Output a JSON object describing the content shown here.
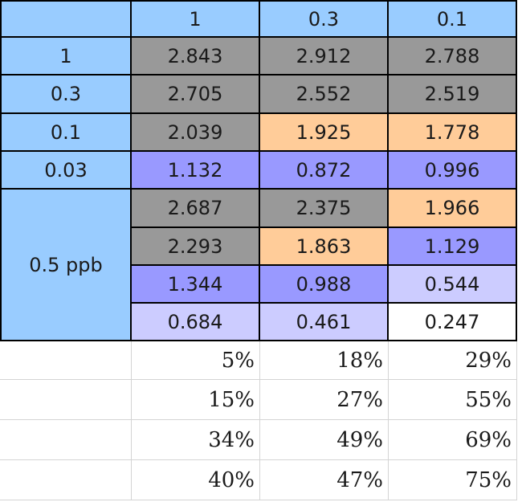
{
  "header": {
    "corner": "",
    "cols": [
      "1",
      "0.3",
      "0.1"
    ]
  },
  "rows": [
    {
      "label": "1",
      "values": [
        "2.843",
        "2.912",
        "2.788"
      ],
      "fills": [
        "gray",
        "gray",
        "gray"
      ]
    },
    {
      "label": "0.3",
      "values": [
        "2.705",
        "2.552",
        "2.519"
      ],
      "fills": [
        "gray",
        "gray",
        "gray"
      ]
    },
    {
      "label": "0.1",
      "values": [
        "2.039",
        "1.925",
        "1.778"
      ],
      "fills": [
        "gray",
        "orange",
        "orange"
      ]
    },
    {
      "label": "0.03",
      "values": [
        "1.132",
        "0.872",
        "0.996"
      ],
      "fills": [
        "purple",
        "purple",
        "purple"
      ]
    }
  ],
  "group": {
    "label": "0.5 ppb",
    "rows": [
      {
        "values": [
          "2.687",
          "2.375",
          "1.966"
        ],
        "fills": [
          "gray",
          "gray",
          "orange"
        ]
      },
      {
        "values": [
          "2.293",
          "1.863",
          "1.129"
        ],
        "fills": [
          "gray",
          "orange",
          "purple"
        ]
      },
      {
        "values": [
          "1.344",
          "0.988",
          "0.544"
        ],
        "fills": [
          "purple",
          "purple",
          "lavender"
        ]
      },
      {
        "values": [
          "0.684",
          "0.461",
          "0.247"
        ],
        "fills": [
          "lavender",
          "lavender",
          "white"
        ]
      }
    ]
  },
  "percent_rows": [
    [
      "5%",
      "18%",
      "29%"
    ],
    [
      "15%",
      "27%",
      "55%"
    ],
    [
      "34%",
      "49%",
      "69%"
    ],
    [
      "40%",
      "47%",
      "75%"
    ]
  ],
  "colors": {
    "header": "#99ccff",
    "gray": "#999999",
    "orange": "#ffcc99",
    "purple": "#9999ff",
    "lavender": "#ccccff",
    "white": "#ffffff"
  }
}
